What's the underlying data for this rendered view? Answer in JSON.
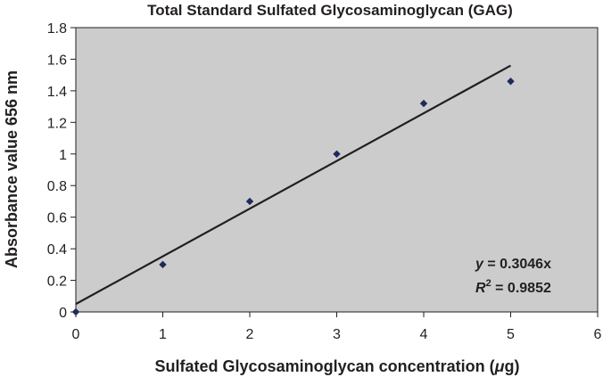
{
  "chart_data": {
    "type": "scatter",
    "title": "Total Standard Sulfated Glycosaminoglycan (GAG)",
    "xlabel_main": "Sulfated Glycosaminoglycan concentration (",
    "xlabel_mu": "μ",
    "xlabel_end": "g)",
    "ylabel": "Absorbance value 656 nm",
    "xlim": [
      0,
      6
    ],
    "ylim": [
      0,
      1.8
    ],
    "x_ticks": [
      "0",
      "1",
      "2",
      "3",
      "4",
      "5",
      "6"
    ],
    "y_ticks": [
      "0",
      "0.2",
      "0.4",
      "0.6",
      "0.8",
      "1",
      "1.2",
      "1.4",
      "1.6",
      "1.8"
    ],
    "grid": false,
    "plot_background": "#cccccc",
    "marker_color": "#1f2a5c",
    "line_color": "#231f20",
    "points": [
      {
        "x": 0,
        "y": 0.0
      },
      {
        "x": 1,
        "y": 0.3
      },
      {
        "x": 2,
        "y": 0.7
      },
      {
        "x": 3,
        "y": 1.0
      },
      {
        "x": 4,
        "y": 1.32
      },
      {
        "x": 5,
        "y": 1.46
      }
    ],
    "trendline": {
      "x_start": 0,
      "y_start": 0.05,
      "x_end": 5,
      "y_end": 1.56
    },
    "equation": {
      "y_var": "y",
      "y_rest": " = 0.3046x",
      "r_var": "R",
      "r_sup": "2",
      "r_rest": " = 0.9852"
    }
  }
}
